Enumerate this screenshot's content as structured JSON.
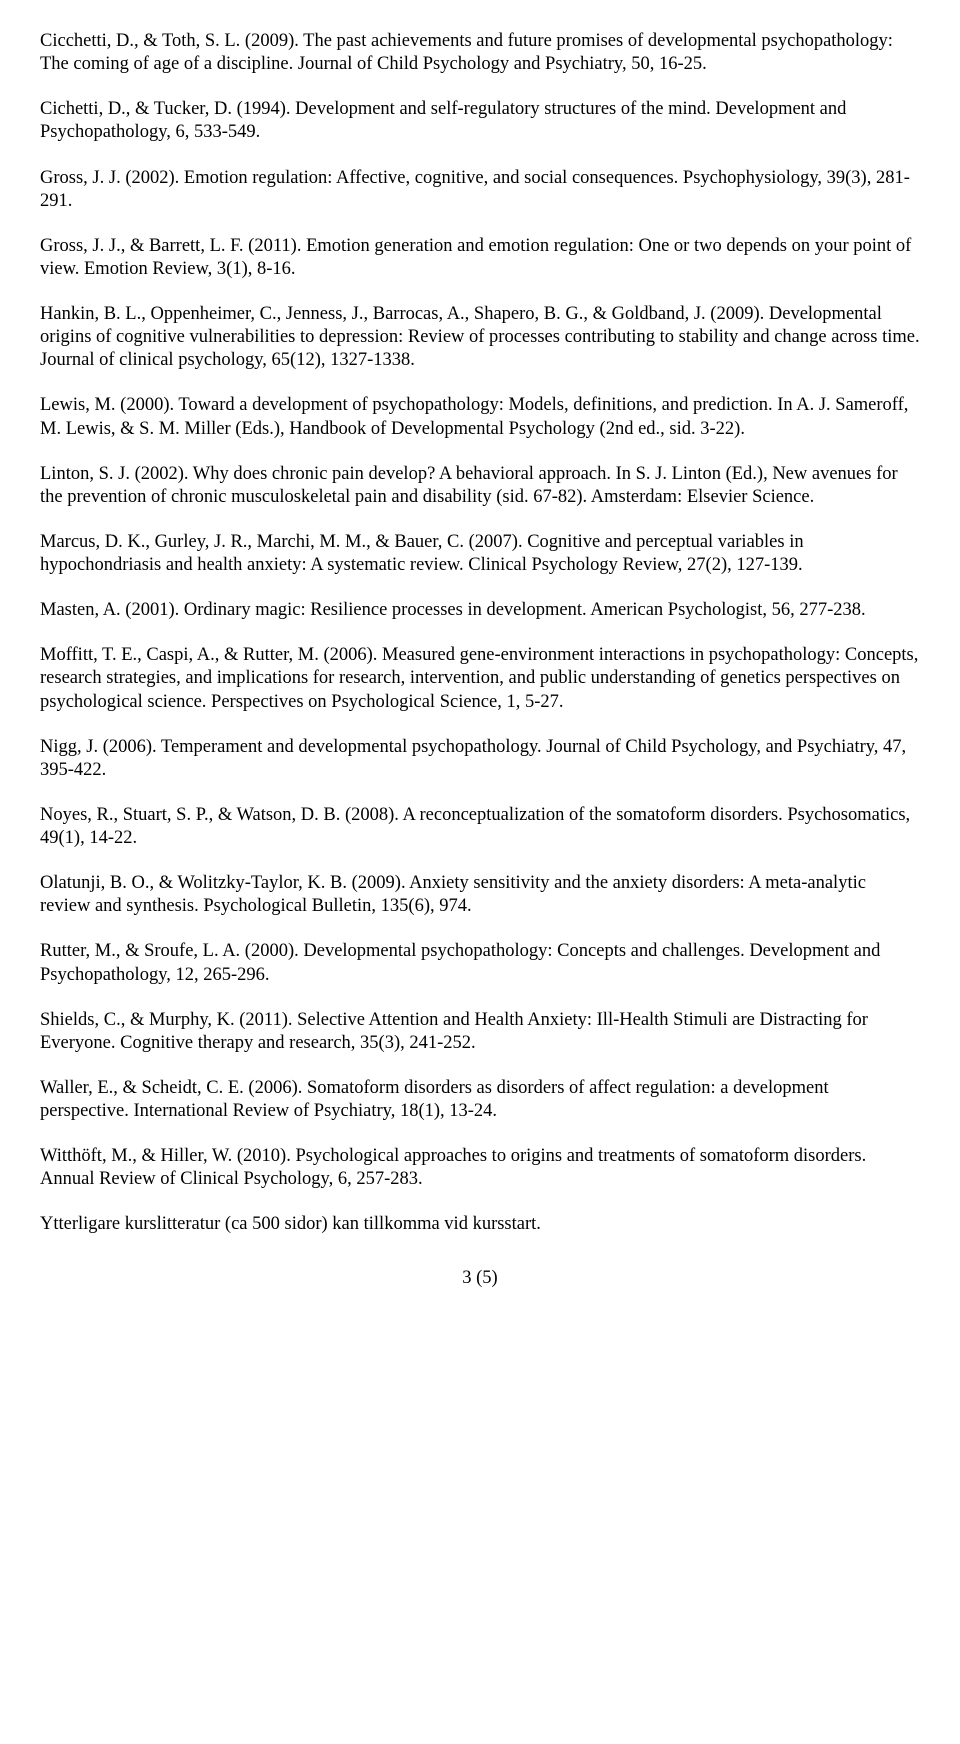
{
  "references": [
    "Cicchetti, D., & Toth, S. L. (2009). The past achievements and future promises of developmental psychopathology: The coming of age of a discipline. Journal of Child Psychology and Psychiatry, 50, 16-25.",
    "Cichetti, D., & Tucker, D. (1994). Development and self-regulatory structures of the mind. Development and Psychopathology, 6, 533-549.",
    "Gross, J. J. (2002). Emotion regulation: Affective, cognitive, and social consequences. Psychophysiology, 39(3), 281-291.",
    "Gross, J. J., & Barrett, L. F. (2011). Emotion generation and emotion regulation: One or two depends on your point of view. Emotion Review, 3(1), 8-16.",
    "Hankin, B. L., Oppenheimer, C., Jenness, J., Barrocas, A., Shapero, B. G., & Goldband, J. (2009). Developmental origins of cognitive vulnerabilities to depression: Review of processes contributing to stability and change across time. Journal of clinical psychology, 65(12), 1327-1338.",
    "Lewis, M. (2000). Toward a development of psychopathology: Models, definitions, and prediction. In A. J. Sameroff, M. Lewis, & S. M. Miller (Eds.), Handbook of Developmental Psychology (2nd ed., sid. 3-22).",
    "Linton, S. J. (2002). Why does chronic pain develop? A behavioral approach. In S. J. Linton (Ed.), New avenues for the prevention of chronic musculoskeletal pain and disability (sid. 67-82). Amsterdam: Elsevier Science.",
    "Marcus, D. K., Gurley, J. R., Marchi, M. M., & Bauer, C. (2007). Cognitive and perceptual variables in hypochondriasis and health anxiety: A systematic review. Clinical Psychology Review, 27(2), 127-139.",
    "Masten, A. (2001). Ordinary magic: Resilience processes in development. American Psychologist, 56, 277-238.",
    "Moffitt, T. E., Caspi, A., & Rutter, M.  (2006). Measured gene-environment interactions in psychopathology: Concepts, research strategies, and implications for research, intervention, and public understanding of genetics perspectives on psychological science. Perspectives on Psychological Science, 1, 5-27.",
    "Nigg, J. (2006). Temperament and developmental psychopathology. Journal of Child Psychology, and Psychiatry, 47, 395-422.",
    "Noyes, R., Stuart, S. P., & Watson, D. B. (2008). A reconceptualization of the somatoform disorders. Psychosomatics, 49(1), 14-22.",
    "Olatunji, B. O., & Wolitzky-Taylor, K. B. (2009). Anxiety sensitivity and the anxiety disorders: A meta-analytic review and synthesis. Psychological Bulletin, 135(6), 974.",
    "Rutter, M., & Sroufe, L. A. (2000). Developmental psychopathology: Concepts and challenges. Development and Psychopathology, 12, 265-296.",
    "Shields, C., & Murphy, K. (2011). Selective Attention and Health Anxiety: Ill-Health Stimuli are Distracting for Everyone. Cognitive therapy and research, 35(3), 241-252.",
    "Waller, E., & Scheidt, C. E. (2006). Somatoform disorders as disorders of affect regulation: a development perspective. International Review of Psychiatry, 18(1), 13-24.",
    "Witthöft, M., & Hiller, W. (2010). Psychological approaches to origins and treatments of somatoform disorders. Annual Review of Clinical Psychology, 6, 257-283.",
    "Ytterligare kurslitteratur (ca 500 sidor) kan tillkomma vid kursstart."
  ],
  "page_number": "3 (5)"
}
